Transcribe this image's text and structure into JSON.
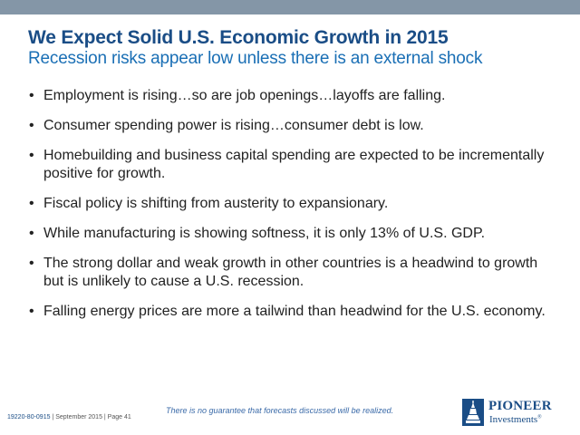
{
  "header": {
    "title": "We Expect Solid U.S. Economic Growth in 2015",
    "subtitle": "Recession risks appear low unless there is an external shock"
  },
  "bullet_symbol": "•",
  "bullets": [
    "Employment is rising…so are job openings…layoffs are falling.",
    "Consumer spending power is rising…consumer debt is low.",
    "Homebuilding and business capital spending are expected to be incrementally  positive for growth.",
    "Fiscal policy is shifting from austerity to expansionary.",
    "While manufacturing is showing softness, it is only 13% of U.S. GDP.",
    "The strong dollar and weak growth in other countries is a headwind to growth but is unlikely to cause a U.S. recession.",
    "Falling energy prices are more a tailwind than headwind for the U.S. economy."
  ],
  "footer": {
    "disclaimer": "There is no guarantee that forecasts discussed will be realized.",
    "ref_id": "19220-80-0915",
    "ref_rest": " | September 2015 | Page 41"
  },
  "logo": {
    "name": "PIONEER",
    "sub": "Investments",
    "reg": "®",
    "icon": "pioneer-logo-icon",
    "color": "#1a4d86"
  },
  "colors": {
    "band": "#8496a7",
    "title": "#1a4d86",
    "subtitle": "#1a6fb5",
    "disclaimer": "#3a6aa8"
  }
}
